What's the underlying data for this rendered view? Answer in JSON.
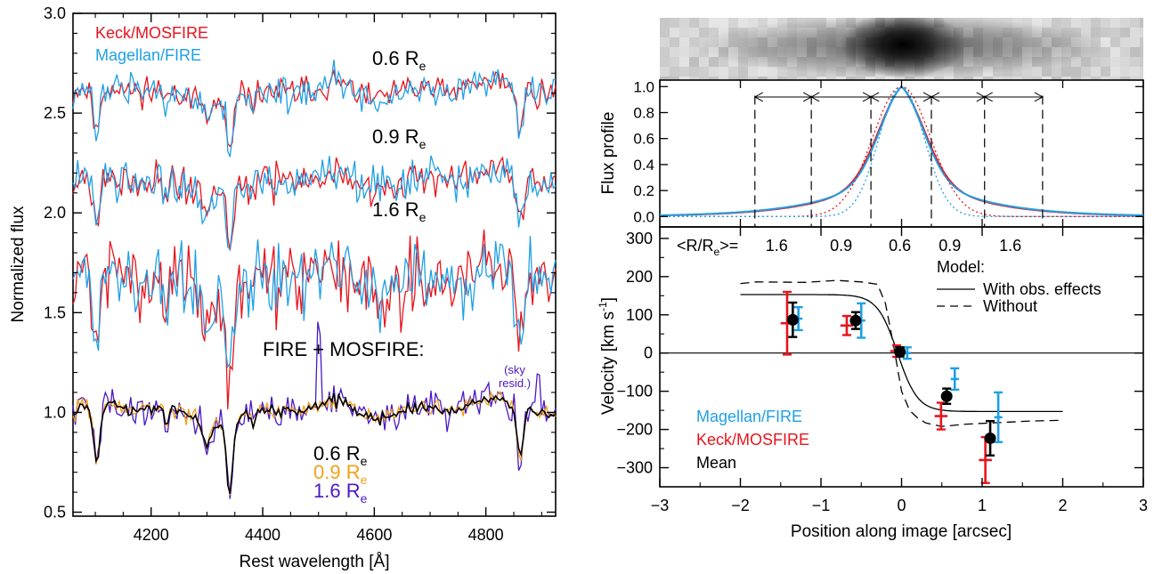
{
  "colors": {
    "keck": "#e8141c",
    "magellan": "#1fa0e6",
    "mean": "#000000",
    "orange": "#f0a018",
    "purple": "#4a18c8"
  },
  "chart_data": [
    {
      "type": "line",
      "id": "spectra",
      "xlabel": "Rest wavelength [Å]",
      "ylabel": "Normalized flux",
      "xlim": [
        4060,
        4925
      ],
      "ylim": [
        0.48,
        3.0
      ],
      "xticks": [
        4200,
        4400,
        4600,
        4800
      ],
      "yticks": [
        0.5,
        1.0,
        1.5,
        2.0,
        2.5,
        3.0
      ],
      "ytick_labels": [
        "0.5",
        "1.0",
        "1.5",
        "2.0",
        "2.5",
        "3.0"
      ],
      "legend": {
        "keck": "Keck/MOSFIRE",
        "magellan": "Magellan/FIRE"
      },
      "stack_labels": [
        {
          "text": "0.6 R",
          "sub": "e",
          "y": 2.78
        },
        {
          "text": "0.9 R",
          "sub": "e",
          "y": 2.35
        },
        {
          "text": "1.6 R",
          "sub": "e",
          "y": 2.03
        }
      ],
      "combined_title": "FIRE + MOSFIRE:",
      "sky_note": [
        "(sky",
        "resid.)"
      ],
      "combined_legend": [
        {
          "text": "0.6 R",
          "sub": "e",
          "color": "#000000"
        },
        {
          "text": "0.9 R",
          "sub": "e",
          "color": "#f0a018"
        },
        {
          "text": "1.6 R",
          "sub": "e",
          "color": "#4a18c8"
        }
      ],
      "series": [
        {
          "name": "Keck/MOSFIRE",
          "group": "0.6 R_e",
          "offset": 2.6,
          "noise": 0.05,
          "seed": 11
        },
        {
          "name": "Magellan/FIRE",
          "group": "0.6 R_e",
          "offset": 2.6,
          "noise": 0.06,
          "seed": 12
        },
        {
          "name": "Keck/MOSFIRE",
          "group": "0.9 R_e",
          "offset": 2.15,
          "noise": 0.06,
          "seed": 21
        },
        {
          "name": "Magellan/FIRE",
          "group": "0.9 R_e",
          "offset": 2.15,
          "noise": 0.07,
          "seed": 22
        },
        {
          "name": "Keck/MOSFIRE",
          "group": "1.6 R_e",
          "offset": 1.65,
          "noise": 0.13,
          "seed": 31
        },
        {
          "name": "Magellan/FIRE",
          "group": "1.6 R_e",
          "offset": 1.65,
          "noise": 0.13,
          "seed": 32
        },
        {
          "name": "1.6 R_e",
          "group": "combined",
          "offset": 1.0,
          "noise": 0.06,
          "seed": 41
        },
        {
          "name": "0.9 R_e",
          "group": "combined",
          "offset": 1.0,
          "noise": 0.03,
          "seed": 42
        },
        {
          "name": "0.6 R_e",
          "group": "combined",
          "offset": 1.0,
          "noise": 0.015,
          "seed": 43
        }
      ],
      "absorption_lines": [
        {
          "center": 4102,
          "depth": 0.25,
          "width": 8
        },
        {
          "center": 4227,
          "depth": 0.08,
          "width": 5
        },
        {
          "center": 4300,
          "depth": 0.1,
          "width": 10
        },
        {
          "center": 4341,
          "depth": 0.3,
          "width": 8
        },
        {
          "center": 4383,
          "depth": 0.08,
          "width": 5
        },
        {
          "center": 4861,
          "depth": 0.22,
          "width": 8
        }
      ],
      "sky_spike": {
        "x": 4500,
        "height": 0.42
      }
    },
    {
      "type": "line",
      "id": "flux_profile",
      "ylabel": "Flux profile",
      "xlim": [
        -3,
        3
      ],
      "ylim": [
        -0.08,
        1.05
      ],
      "yticks": [
        0.0,
        0.2,
        0.4,
        0.6,
        0.8,
        1.0
      ],
      "ytick_labels": [
        "0.0",
        "0.2",
        "0.4",
        "0.6",
        "0.8",
        "1.0"
      ],
      "bin_edges": [
        -1.82,
        -1.12,
        -0.38,
        0.37,
        1.03,
        1.75
      ],
      "series": [
        {
          "name": "Keck/MOSFIRE",
          "style": "solid",
          "core_sigma": 0.3,
          "wing_scale": 0.75
        },
        {
          "name": "Magellan/FIRE",
          "style": "solid",
          "core_sigma": 0.28,
          "wing_scale": 0.78
        },
        {
          "name": "Keck/MOSFIRE PSF",
          "style": "dotted",
          "sigma": 0.36
        },
        {
          "name": "Magellan/FIRE PSF",
          "style": "dotted",
          "sigma": 0.28
        }
      ]
    },
    {
      "type": "scatter",
      "id": "rotation_curve",
      "xlabel": "Position along image [arcsec]",
      "ylabel": "Velocity [km s",
      "ylabel_sup": "-1",
      "ylabel_close": "]",
      "xlim": [
        -3,
        3
      ],
      "ylim": [
        -350,
        330
      ],
      "xticks": [
        -3,
        -2,
        -1,
        0,
        1,
        2,
        3
      ],
      "xtick_labels": [
        "−3",
        "−2",
        "−1",
        "0",
        "1",
        "2",
        "3"
      ],
      "yticks": [
        -300,
        -200,
        -100,
        0,
        100,
        200,
        300
      ],
      "ytick_labels": [
        "−300",
        "−200",
        "−100",
        "0",
        "100",
        "200",
        "300"
      ],
      "radius_header": {
        "prefix": "<R/R",
        "sub": "e",
        "suffix": ">="
      },
      "radius_labels": [
        {
          "x": -1.55,
          "text": "1.6"
        },
        {
          "x": -0.75,
          "text": "0.9"
        },
        {
          "x": -0.02,
          "text": "0.6"
        },
        {
          "x": 0.6,
          "text": "0.9"
        },
        {
          "x": 1.35,
          "text": "1.6"
        }
      ],
      "model_legend": {
        "title": "Model:",
        "solid": "With obs. effects",
        "dashed": "Without"
      },
      "legend": [
        {
          "text": "Magellan/FIRE",
          "color": "#1fa0e6"
        },
        {
          "text": "Keck/MOSFIRE",
          "color": "#e8141c"
        },
        {
          "text": "Mean",
          "color": "#000000"
        }
      ],
      "model_with_obs_effects": {
        "vmax": 153,
        "center": -0.05,
        "scale": 0.25,
        "x_range": [
          -2,
          2
        ]
      },
      "model_without": {
        "x": [
          -2,
          -1.8,
          -1.2,
          -0.8,
          -0.5,
          -0.3,
          -0.2,
          -0.1,
          0.0,
          0.1,
          0.2,
          0.3,
          0.5,
          0.8,
          1.2,
          1.6,
          2.0
        ],
        "y": [
          182,
          186,
          185,
          190,
          186,
          180,
          130,
          20,
          -100,
          -150,
          -170,
          -183,
          -192,
          -186,
          -182,
          -178,
          -176
        ]
      },
      "points": {
        "Keck/MOSFIRE": {
          "x": [
            -1.42,
            -0.68,
            -0.06,
            0.49,
            1.04
          ],
          "y": [
            78,
            72,
            5,
            -165,
            -280
          ],
          "yerr": [
            82,
            25,
            15,
            35,
            60
          ],
          "xerr": 0.08
        },
        "Magellan/FIRE": {
          "x": [
            -1.28,
            -0.5,
            0.07,
            0.66,
            1.2
          ],
          "y": [
            90,
            85,
            0,
            -68,
            -168
          ],
          "yerr": [
            30,
            45,
            15,
            28,
            65
          ],
          "xerr": 0.05
        },
        "Mean": {
          "x": [
            -1.35,
            -0.57,
            -0.02,
            0.56,
            1.1
          ],
          "y": [
            87,
            85,
            3,
            -113,
            -223
          ],
          "yerr": [
            45,
            22,
            12,
            20,
            45
          ],
          "xerr": 0.0
        }
      }
    }
  ]
}
